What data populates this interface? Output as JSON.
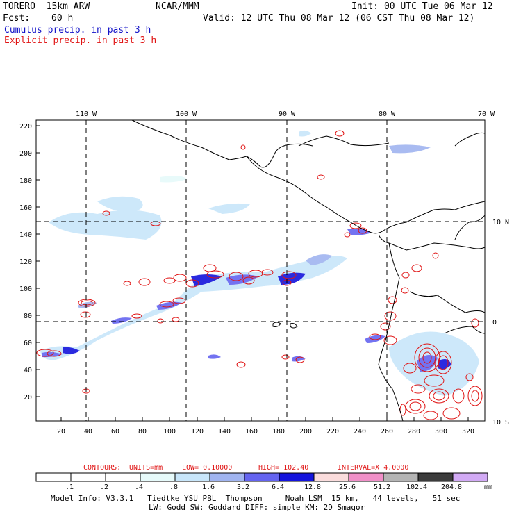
{
  "header": {
    "model": "TORERO  15km ARW",
    "org": "NCAR/MMM",
    "init": "Init: 00 UTC Tue 06 Mar 12",
    "fcst_label": "Fcst:",
    "fcst_value": "60 h",
    "valid": "Valid: 12 UTC Thu 08 Mar 12 (06 CST Thu 08 Mar 12)",
    "cumulus": "Cumulus precip. in past 3 h",
    "explicit": "Explicit precip. in past 3 h"
  },
  "map": {
    "lon_labels": [
      "110 W",
      "100 W",
      "90 W",
      "80 W",
      "70 W"
    ],
    "lat_labels": [
      "10 N",
      "0",
      "10 S"
    ],
    "y_ticks": [
      "220",
      "200",
      "180",
      "160",
      "140",
      "120",
      "100",
      "80",
      "60",
      "40",
      "20"
    ],
    "x_ticks": [
      "20",
      "40",
      "60",
      "80",
      "100",
      "120",
      "140",
      "160",
      "180",
      "200",
      "220",
      "240",
      "260",
      "280",
      "300",
      "320"
    ]
  },
  "contours": {
    "label": "CONTOURS:",
    "units": "UNITS=mm",
    "low": "LOW= 0.10000",
    "high": "HIGH=  102.40",
    "interval": "INTERVAL=X  4.0000"
  },
  "colorbar": {
    "labels": [
      ".1",
      ".2",
      ".4",
      ".8",
      "1.6",
      "3.2",
      "6.4",
      "12.8",
      "25.6",
      "51.2",
      "102.4",
      "204.8"
    ],
    "units": "mm",
    "colors": [
      "#ffffff",
      "#ffffff",
      "#ffffff",
      "#e6fafa",
      "#c8e6fa",
      "#a0b4f0",
      "#6464f0",
      "#1414dc",
      "#fadcdc",
      "#f090c8",
      "#b4b4b4",
      "#3c3c3c",
      "#d2aaf5"
    ]
  },
  "footer": {
    "line1": "Model Info: V3.3.1   Tiedtke YSU PBL  Thompson     Noah LSM  15 km,   44 levels,   51 sec",
    "line2": "LW: Godd SW: Goddard DIFF: simple KM: 2D Smagor"
  }
}
